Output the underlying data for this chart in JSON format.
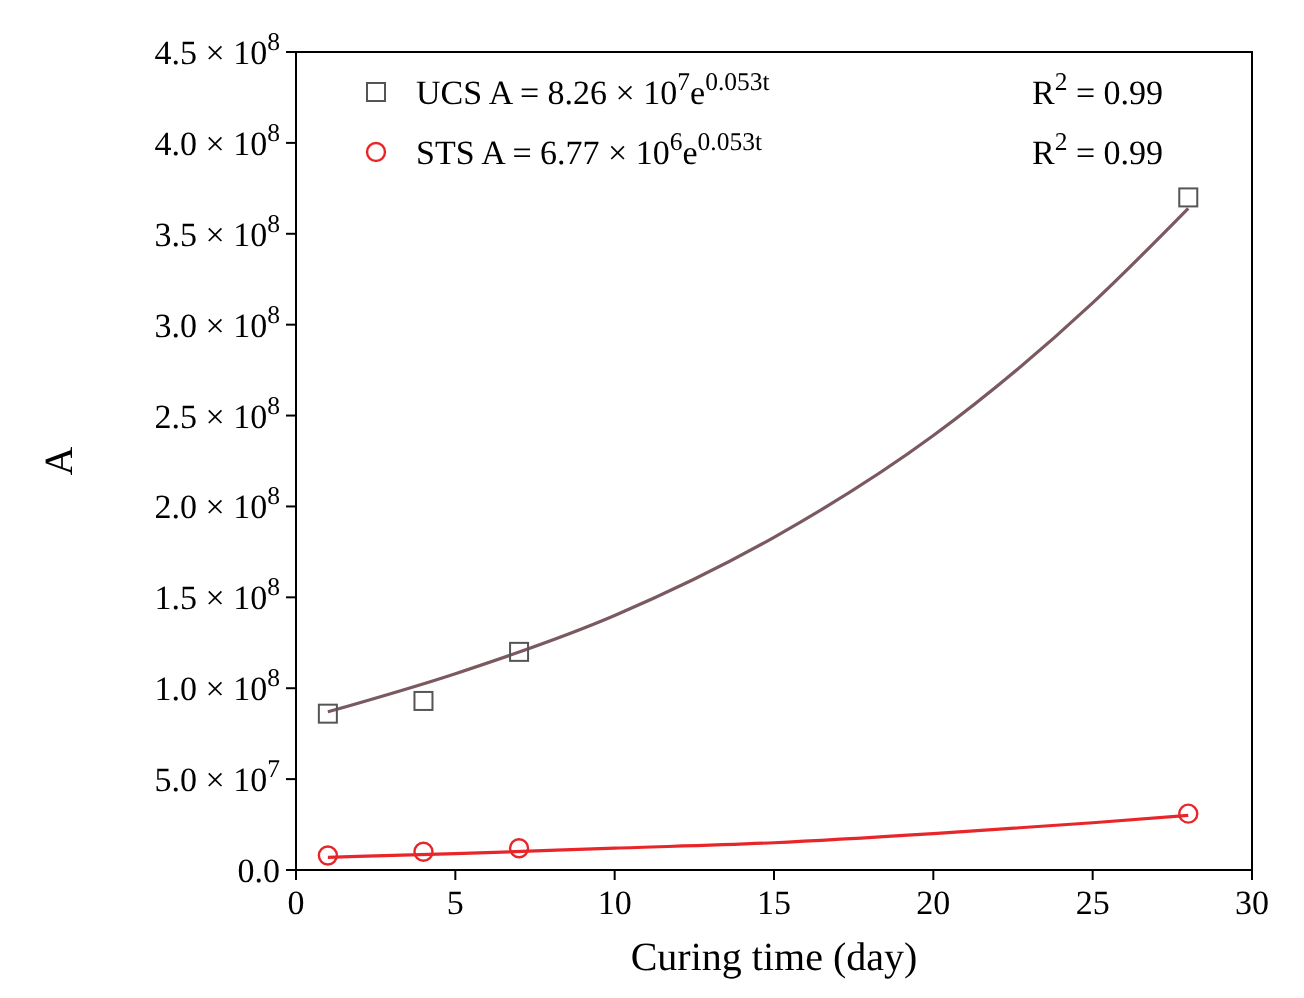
{
  "chart_data": {
    "type": "scatter",
    "xlabel": "Curing time (day)",
    "ylabel": "A",
    "xlim": [
      0,
      30
    ],
    "xticks": [
      0,
      5,
      10,
      15,
      20,
      25,
      30
    ],
    "ylim": [
      0,
      450000000
    ],
    "yticks": [
      {
        "value": 0,
        "label": "0.0"
      },
      {
        "value": 50000000,
        "label": "5.0 × 10$^{7}$"
      },
      {
        "value": 100000000,
        "label": "1.0 × 10$^{8}$"
      },
      {
        "value": 150000000,
        "label": "1.5 × 10$^{8}$"
      },
      {
        "value": 200000000,
        "label": "2.0 × 10$^{8}$"
      },
      {
        "value": 250000000,
        "label": "2.5 × 10$^{8}$"
      },
      {
        "value": 300000000,
        "label": "3.0 × 10$^{8}$"
      },
      {
        "value": 350000000,
        "label": "3.5 × 10$^{8}$"
      },
      {
        "value": 400000000,
        "label": "4.0 × 10$^{8}$"
      },
      {
        "value": 450000000,
        "label": "4.5 × 10$^{8}$"
      }
    ],
    "grid": false,
    "legend": "top left",
    "annotations": [
      "R$^{2}$ = 0.99",
      "R$^{2}$ = 0.99"
    ],
    "series": [
      {
        "name": "UCS A = 8.26 × 10$^{7}$e$^{0.053t}$",
        "marker": "square",
        "color": "#555555",
        "x": [
          1,
          4,
          7,
          28
        ],
        "values": [
          86000000,
          93000000,
          120000000,
          370000000
        ]
      },
      {
        "name": "STS A = 6.77 × 10$^{6}$e$^{0.053t}$",
        "marker": "circle",
        "color": "#e8262a",
        "x": [
          1,
          4,
          7,
          28
        ],
        "values": [
          8000000,
          10000000,
          12000000,
          31000000
        ]
      },
      {
        "type": "line",
        "marker": "none",
        "color": "#7a5a60",
        "x": [
          1,
          5,
          10,
          15,
          20,
          25,
          28
        ],
        "values": [
          87000000,
          108000000,
          140000000,
          183000000,
          239000000,
          312000000,
          364000000
        ]
      },
      {
        "type": "line",
        "marker": "none",
        "color": "#e8262a",
        "x": [
          1,
          5,
          10,
          15,
          20,
          25,
          28
        ],
        "values": [
          7000000,
          9000000,
          12000000,
          15000000,
          20000000,
          26000000,
          30000000
        ]
      }
    ]
  }
}
